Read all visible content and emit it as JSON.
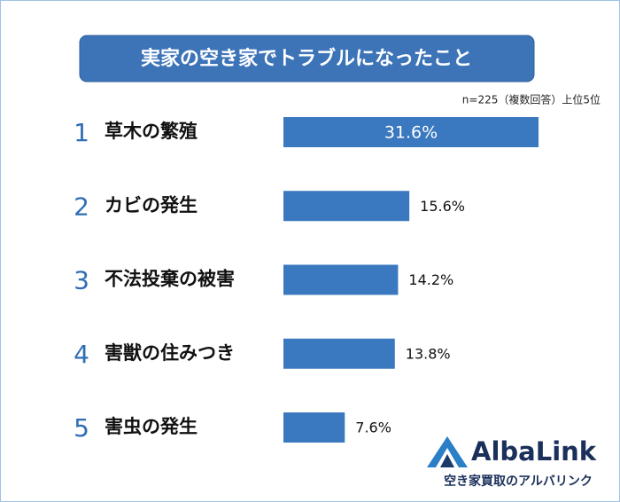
{
  "chart_data": {
    "type": "bar",
    "orientation": "horizontal",
    "title": "実家の空き家でトラブルになったこと",
    "note": "n=225（複数回答）上位5位",
    "ranks": [
      "1",
      "2",
      "3",
      "4",
      "5"
    ],
    "categories": [
      "草木の繁殖",
      "カビの発生",
      "不法投棄の被害",
      "害獣の住みつき",
      "害虫の発生"
    ],
    "values": [
      31.6,
      15.6,
      14.2,
      13.8,
      7.6
    ],
    "value_labels": [
      "31.6%",
      "15.6%",
      "14.2%",
      "13.8%",
      "7.6%"
    ],
    "color": "#3a78bf",
    "logo": {
      "name": "AlbaLink",
      "tagline": "空き家買取のアルバリンク"
    }
  }
}
